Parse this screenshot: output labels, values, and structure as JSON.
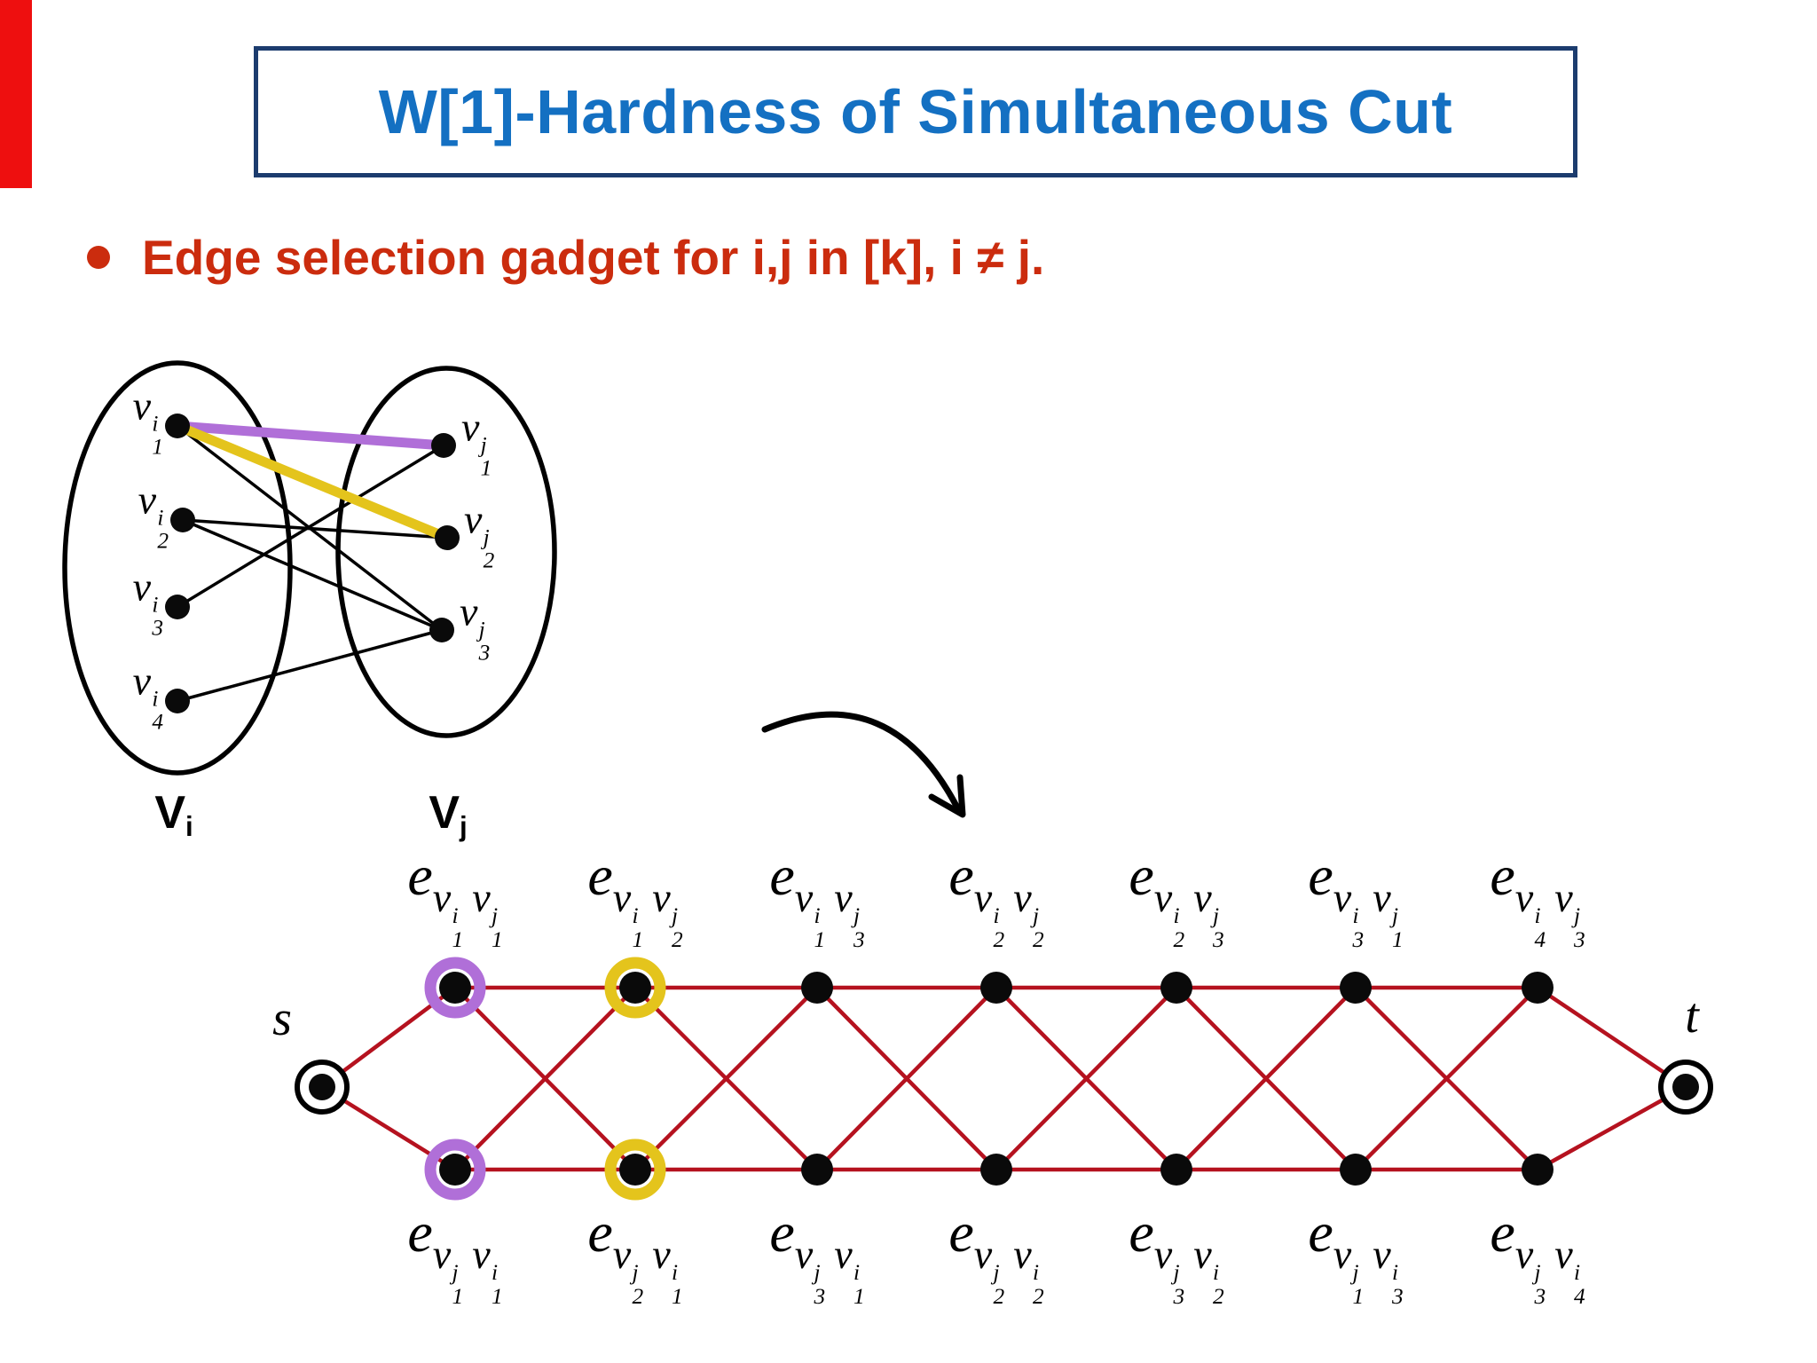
{
  "slide": {
    "title": "W[1]-Hardness of Simultaneous Cut",
    "bullet_text": "Edge selection gadget for i,j in [k], i ≠ j.",
    "colors": {
      "strip_red": "#ee0f0f",
      "title_text": "#1470c2",
      "title_border": "#1c3c6e",
      "bullet_red": "#cb2c0e",
      "graph_edge_red": "#b5121f",
      "highlight_purple": "#b06fd8",
      "highlight_yellow": "#e4c41c",
      "node_black": "#0a0a0a"
    }
  },
  "bipartite": {
    "left_set_label": {
      "base": "V",
      "sub": "i"
    },
    "right_set_label": {
      "base": "V",
      "sub": "j"
    },
    "left_nodes": [
      [
        "v",
        "i",
        "1"
      ],
      [
        "v",
        "i",
        "2"
      ],
      [
        "v",
        "i",
        "3"
      ],
      [
        "v",
        "i",
        "4"
      ]
    ],
    "right_nodes": [
      [
        "v",
        "j",
        "1"
      ],
      [
        "v",
        "j",
        "2"
      ],
      [
        "v",
        "j",
        "3"
      ]
    ],
    "edges": [
      {
        "from": 0,
        "to": 0,
        "highlight": "purple"
      },
      {
        "from": 0,
        "to": 1,
        "highlight": "yellow"
      },
      {
        "from": 0,
        "to": 2,
        "highlight": null
      },
      {
        "from": 1,
        "to": 1,
        "highlight": null
      },
      {
        "from": 1,
        "to": 2,
        "highlight": null
      },
      {
        "from": 2,
        "to": 0,
        "highlight": null
      },
      {
        "from": 3,
        "to": 2,
        "highlight": null
      }
    ]
  },
  "gadget": {
    "edge_letter": "e",
    "source_label": "s",
    "sink_label": "t",
    "columns": [
      {
        "top": [
          [
            "v",
            "i",
            "1"
          ],
          [
            "v",
            "j",
            "1"
          ]
        ],
        "bottom": [
          [
            "v",
            "j",
            "1"
          ],
          [
            "v",
            "i",
            "1"
          ]
        ],
        "highlight": "purple"
      },
      {
        "top": [
          [
            "v",
            "i",
            "1"
          ],
          [
            "v",
            "j",
            "2"
          ]
        ],
        "bottom": [
          [
            "v",
            "j",
            "2"
          ],
          [
            "v",
            "i",
            "1"
          ]
        ],
        "highlight": "yellow"
      },
      {
        "top": [
          [
            "v",
            "i",
            "1"
          ],
          [
            "v",
            "j",
            "3"
          ]
        ],
        "bottom": [
          [
            "v",
            "j",
            "3"
          ],
          [
            "v",
            "i",
            "1"
          ]
        ],
        "highlight": null
      },
      {
        "top": [
          [
            "v",
            "i",
            "2"
          ],
          [
            "v",
            "j",
            "2"
          ]
        ],
        "bottom": [
          [
            "v",
            "j",
            "2"
          ],
          [
            "v",
            "i",
            "2"
          ]
        ],
        "highlight": null
      },
      {
        "top": [
          [
            "v",
            "i",
            "2"
          ],
          [
            "v",
            "j",
            "3"
          ]
        ],
        "bottom": [
          [
            "v",
            "j",
            "3"
          ],
          [
            "v",
            "i",
            "2"
          ]
        ],
        "highlight": null
      },
      {
        "top": [
          [
            "v",
            "i",
            "3"
          ],
          [
            "v",
            "j",
            "1"
          ]
        ],
        "bottom": [
          [
            "v",
            "j",
            "1"
          ],
          [
            "v",
            "i",
            "3"
          ]
        ],
        "highlight": null
      },
      {
        "top": [
          [
            "v",
            "i",
            "4"
          ],
          [
            "v",
            "j",
            "3"
          ]
        ],
        "bottom": [
          [
            "v",
            "j",
            "3"
          ],
          [
            "v",
            "i",
            "4"
          ]
        ],
        "highlight": null
      }
    ]
  }
}
